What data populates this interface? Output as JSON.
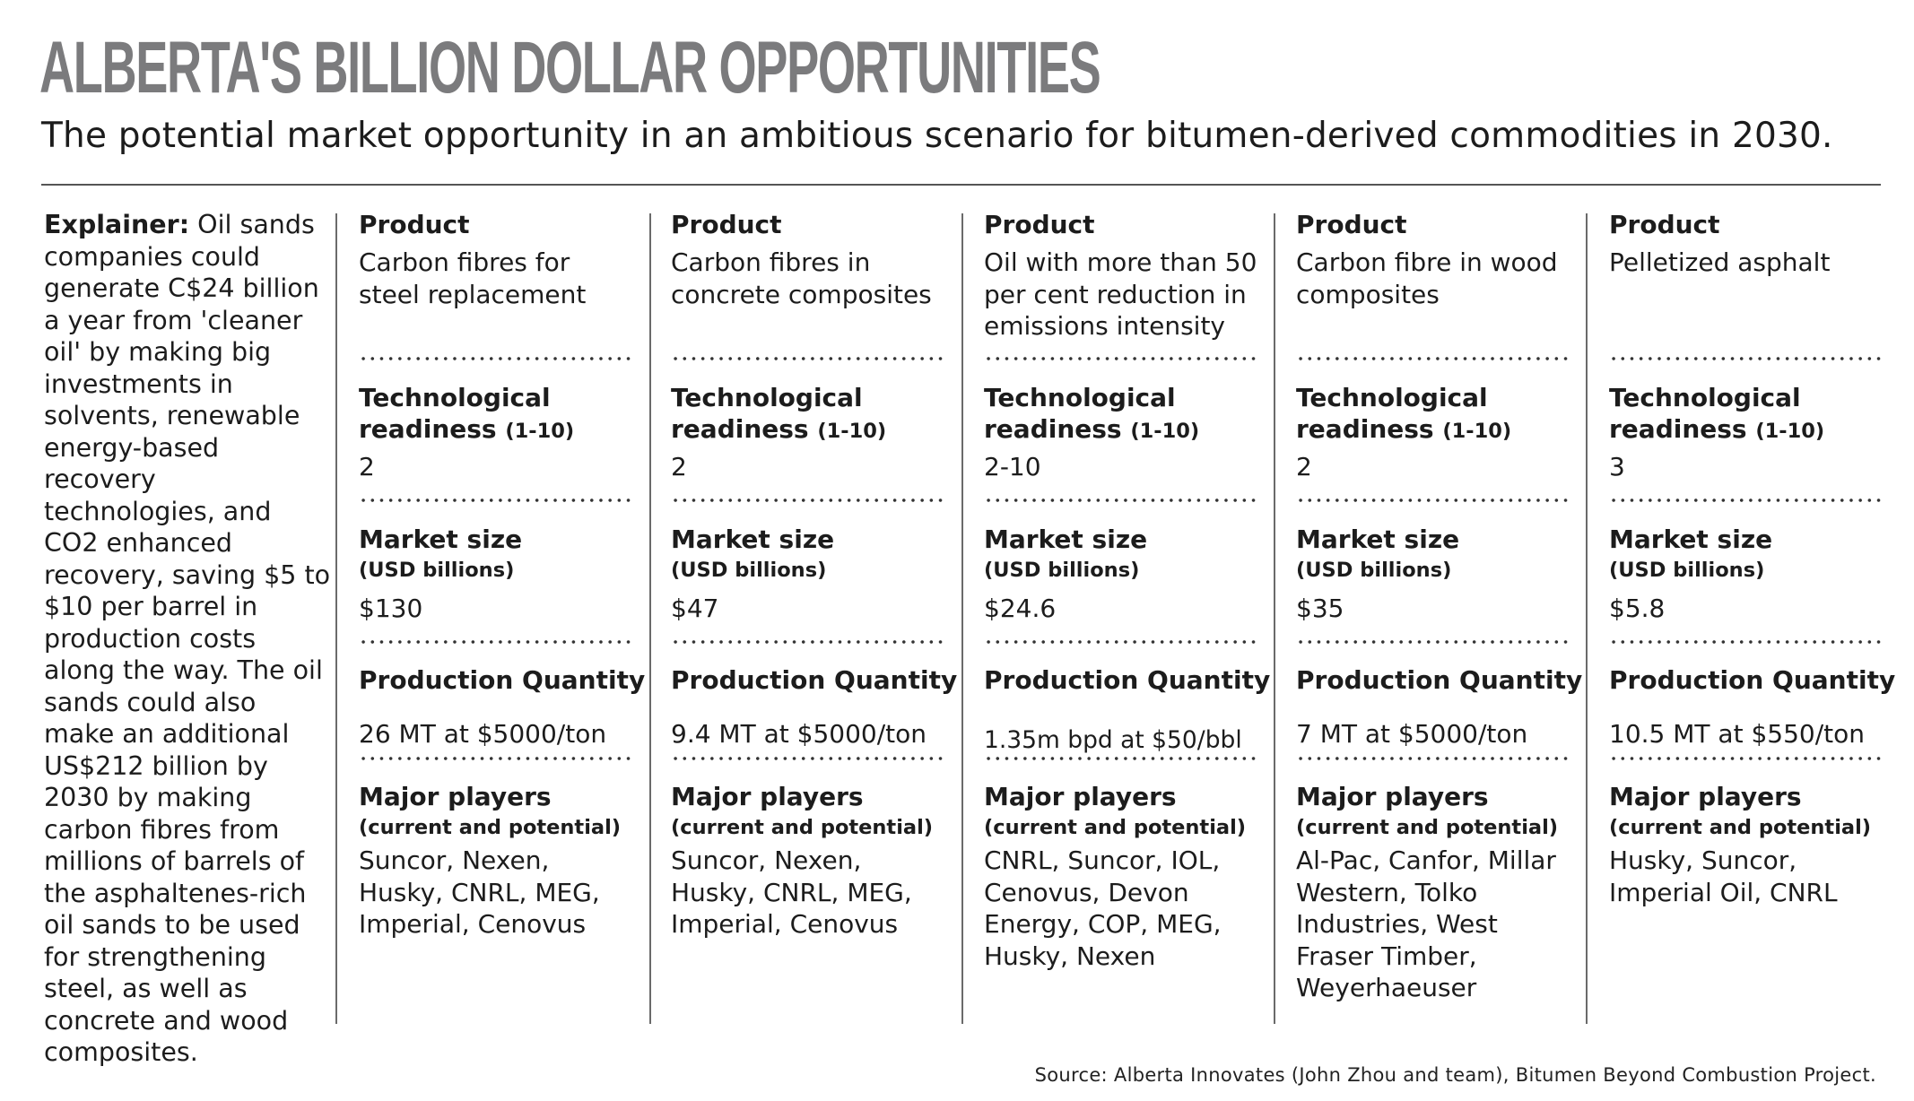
{
  "title": "ALBERTA'S BILLION DOLLAR OPPORTUNITIES",
  "subtitle": "The potential market opportunity in an ambitious scenario for bitumen-derived commodities in 2030.",
  "explainer": {
    "label": "Explainer:",
    "text": "Oil sands companies could generate C$24 billion a year from 'cleaner oil' by making big investments in solvents, renewable energy-based recovery technologies, and CO2 enhanced recovery, saving $5 to $10 per barrel in production costs along the way. The oil sands could also make an additional US$212 billion by 2030 by making carbon fibres from millions of barrels of the asphaltenes-rich oil sands to be used for strengthening steel, as well as concrete and wood composites."
  },
  "labels": {
    "product": "Product",
    "tech_1": "Technological",
    "tech_2": "readiness",
    "tech_scale": "(1-10)",
    "market": "Market size",
    "market_unit": "(USD billions)",
    "production": "Production Quantity",
    "players": "Major players",
    "players_sub": "(current and potential)"
  },
  "columns": [
    {
      "product": "Carbon fibres for steel replacement",
      "readiness": "2",
      "market": "$130",
      "production": "26 MT at $5000/ton",
      "players": "Suncor, Nexen, Husky, CNRL, MEG, Imperial, Cenovus"
    },
    {
      "product": "Carbon fibres in concrete composites",
      "readiness": "2",
      "market": "$47",
      "production": "9.4 MT at $5000/ton",
      "players": "Suncor, Nexen, Husky, CNRL, MEG, Imperial, Cenovus"
    },
    {
      "product": "Oil with more than 50 per cent reduction in emissions intensity",
      "readiness": "2-10",
      "market": "$24.6",
      "production": "1.35m bpd at $50/bbl",
      "players": "CNRL, Suncor, IOL, Cenovus, Devon Energy, COP, MEG, Husky, Nexen"
    },
    {
      "product": "Carbon fibre in wood composites",
      "readiness": "2",
      "market": "$35",
      "production": "7 MT at $5000/ton",
      "players": "Al-Pac, Canfor, Millar Western, Tolko Industries, West Fraser Timber, Weyerhaeuser"
    },
    {
      "product": "Pelletized asphalt",
      "readiness": "3",
      "market": "$5.8",
      "production": "10.5 MT at $550/ton",
      "players": "Husky, Suncor, Imperial Oil, CNRL"
    }
  ],
  "source": "Source: Alberta Innovates (John Zhou and team), Bitumen Beyond Combustion Project."
}
